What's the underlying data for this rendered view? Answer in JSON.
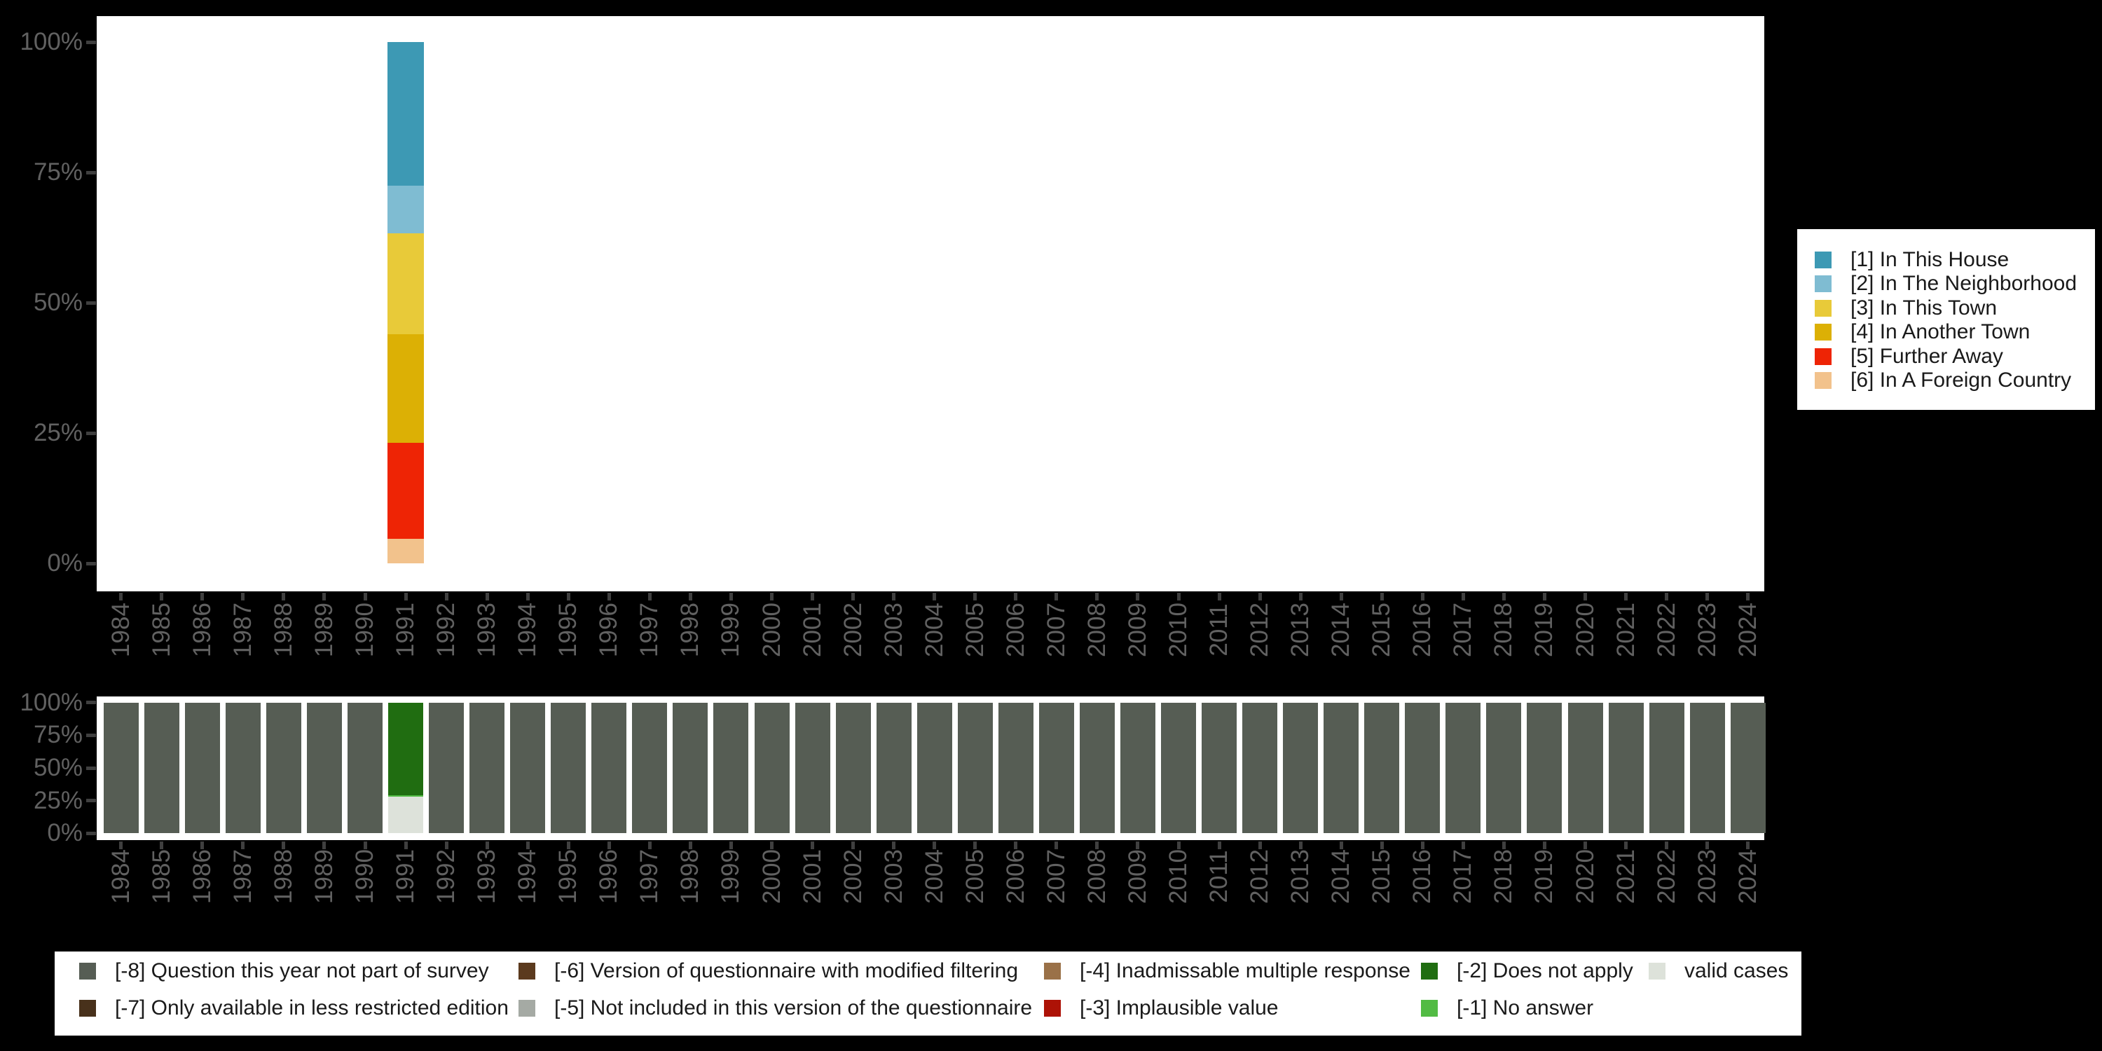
{
  "background": "#000000",
  "plot_background": "#ffffff",
  "axis": {
    "tick_color": "#3f3f3f",
    "label_color": "#616161",
    "y_ticks": [
      "100%",
      "75%",
      "50%",
      "25%",
      "0%"
    ],
    "y_tick_values": [
      100,
      75,
      50,
      25,
      0
    ]
  },
  "chart_data": [
    {
      "type": "bar",
      "stacked": true,
      "unit": "percent",
      "title": "",
      "xlabel": "",
      "ylabel": "",
      "ylim": [
        0,
        100
      ],
      "grid": false,
      "legend_position": "right",
      "categories": [
        1984,
        1985,
        1986,
        1987,
        1988,
        1989,
        1990,
        1991,
        1992,
        1993,
        1994,
        1995,
        1996,
        1997,
        1998,
        1999,
        2000,
        2001,
        2002,
        2003,
        2004,
        2005,
        2006,
        2007,
        2008,
        2009,
        2010,
        2011,
        2012,
        2013,
        2014,
        2015,
        2016,
        2017,
        2018,
        2019,
        2020,
        2021,
        2022,
        2023,
        2024
      ],
      "series": [
        {
          "name": "[1] In This House",
          "color": "#3d99b4",
          "default_value": 0,
          "values": {
            "1991": 27.5
          }
        },
        {
          "name": "[2] In The Neighborhood",
          "color": "#7fbcd2",
          "default_value": 0,
          "values": {
            "1991": 9.2
          }
        },
        {
          "name": "[3] In This Town",
          "color": "#e8ca39",
          "default_value": 0,
          "values": {
            "1991": 19.3
          }
        },
        {
          "name": "[4] In Another Town",
          "color": "#dcb005",
          "default_value": 0,
          "values": {
            "1991": 20.9
          }
        },
        {
          "name": "[5] Further Away",
          "color": "#ee2405",
          "default_value": 0,
          "values": {
            "1991": 18.4
          }
        },
        {
          "name": "[6] In A Foreign Country",
          "color": "#f2c28c",
          "default_value": 0,
          "values": {
            "1991": 4.7
          }
        }
      ]
    },
    {
      "type": "bar",
      "stacked": true,
      "unit": "percent",
      "title": "",
      "xlabel": "",
      "ylabel": "",
      "ylim": [
        0,
        100
      ],
      "grid": false,
      "legend_position": "bottom",
      "categories": [
        1984,
        1985,
        1986,
        1987,
        1988,
        1989,
        1990,
        1991,
        1992,
        1993,
        1994,
        1995,
        1996,
        1997,
        1998,
        1999,
        2000,
        2001,
        2002,
        2003,
        2004,
        2005,
        2006,
        2007,
        2008,
        2009,
        2010,
        2011,
        2012,
        2013,
        2014,
        2015,
        2016,
        2017,
        2018,
        2019,
        2020,
        2021,
        2022,
        2023,
        2024
      ],
      "series": [
        {
          "name": "[-8] Question this year not part of survey",
          "color": "#565d54",
          "default_value": 100,
          "values": {
            "1991": 0
          }
        },
        {
          "name": "[-7] Only available in less restricted edition",
          "color": "#48311b",
          "default_value": 0,
          "values": {}
        },
        {
          "name": "[-6] Version of questionnaire with modified filtering",
          "color": "#5b3a1e",
          "default_value": 0,
          "values": {}
        },
        {
          "name": "[-5] Not included in this version of the questionnaire",
          "color": "#a5aaa4",
          "default_value": 0,
          "values": {}
        },
        {
          "name": "[-4] Inadmissable multiple response",
          "color": "#9a7148",
          "default_value": 0,
          "values": {}
        },
        {
          "name": "[-3] Implausible value",
          "color": "#ad1206",
          "default_value": 0,
          "values": {}
        },
        {
          "name": "[-2] Does not apply",
          "color": "#206d11",
          "default_value": 0,
          "values": {
            "1991": 70.9
          }
        },
        {
          "name": "[-1] No answer",
          "color": "#52bb44",
          "default_value": 0,
          "values": {
            "1991": 1.2
          }
        },
        {
          "name": "valid cases",
          "color": "#dde2da",
          "default_value": 0,
          "values": {
            "1991": 27.9
          }
        }
      ]
    }
  ],
  "legend_bottom": {
    "columns": [
      {
        "item_indices": [
          0,
          1
        ]
      },
      {
        "item_indices": [
          2,
          3
        ]
      },
      {
        "item_indices": [
          4,
          5
        ]
      },
      {
        "item_indices": [
          6,
          7
        ]
      },
      {
        "item_indices": [
          8
        ]
      }
    ]
  }
}
